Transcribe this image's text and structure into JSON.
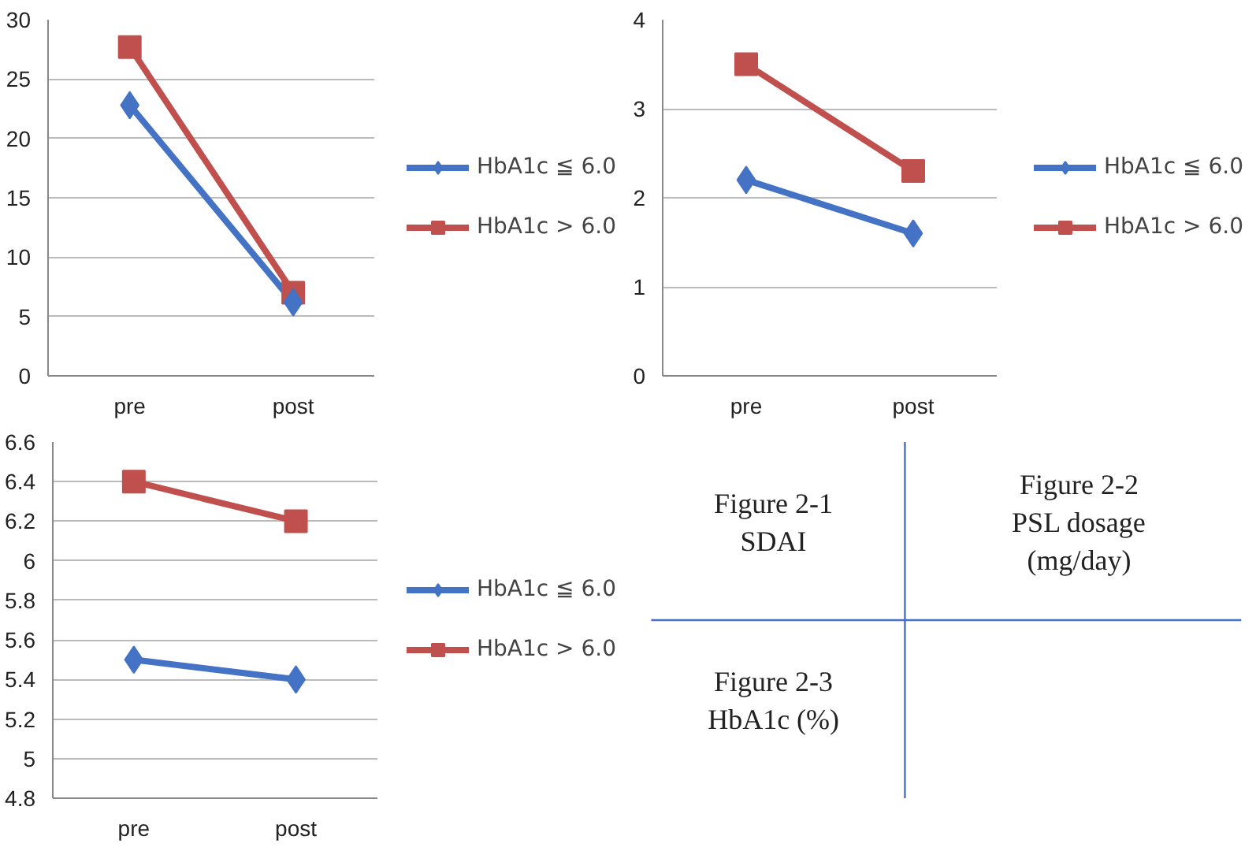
{
  "chart_data": [
    {
      "type": "line",
      "categories": [
        "pre",
        "post"
      ],
      "ylim": [
        0,
        30
      ],
      "yticks": [
        0,
        5,
        10,
        15,
        20,
        25,
        30
      ],
      "grid": "y",
      "legend": "right",
      "line_style": "solid",
      "series": [
        {
          "name": "HbA1c ≦ 6.0",
          "color": "#4472c4",
          "marker": "diamond",
          "values": [
            22.8,
            6.2
          ]
        },
        {
          "name": "HbA1c > 6.0",
          "color": "#c0504d",
          "marker": "square",
          "values": [
            27.7,
            7.0
          ]
        }
      ]
    },
    {
      "type": "line",
      "categories": [
        "pre",
        "post"
      ],
      "ylim": [
        0,
        4
      ],
      "yticks": [
        0,
        1,
        2,
        3,
        4
      ],
      "grid": "y",
      "legend": "right",
      "line_style": "solid",
      "series": [
        {
          "name": "HbA1c ≦ 6.0",
          "color": "#4472c4",
          "marker": "diamond",
          "values": [
            2.2,
            1.6
          ]
        },
        {
          "name": "HbA1c > 6.0",
          "color": "#c0504d",
          "marker": "square",
          "values": [
            3.5,
            2.3
          ]
        }
      ]
    },
    {
      "type": "line",
      "categories": [
        "pre",
        "post"
      ],
      "ylim": [
        4.8,
        6.6
      ],
      "yticks": [
        4.8,
        5,
        5.2,
        5.4,
        5.6,
        5.8,
        6,
        6.2,
        6.4,
        6.6
      ],
      "grid": "y",
      "legend": "right",
      "line_style": "solid",
      "series": [
        {
          "name": "HbA1c ≦ 6.0",
          "color": "#4472c4",
          "marker": "diamond",
          "values": [
            5.5,
            5.4
          ]
        },
        {
          "name": "HbA1c > 6.0",
          "color": "#c0504d",
          "marker": "square",
          "values": [
            6.4,
            6.2
          ]
        }
      ]
    },
    {
      "type": "other",
      "annotations": [
        "Figure 2-1\nSDAI",
        "Figure 2-2\nPSL dosage\n(mg/day)",
        "Figure 2-3\nHbA1c (%)"
      ]
    }
  ]
}
